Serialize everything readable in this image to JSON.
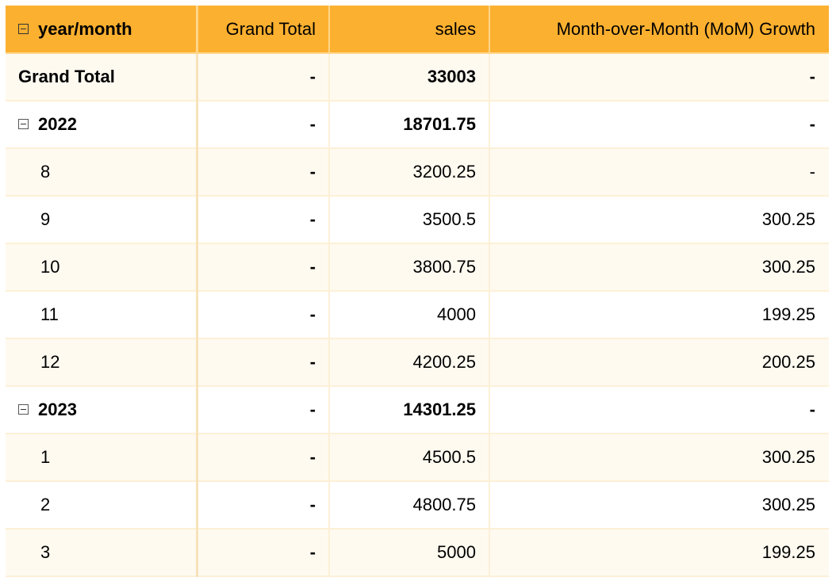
{
  "header": {
    "dimension_label": "year/month",
    "columns": [
      "Grand Total",
      "sales",
      "Month-over-Month (MoM) Growth"
    ]
  },
  "rows": [
    {
      "label": "Grand Total",
      "grand_total": "-",
      "sales": "33003",
      "mom": "-"
    },
    {
      "label": "2022",
      "grand_total": "-",
      "sales": "18701.75",
      "mom": "-"
    },
    {
      "label": "8",
      "grand_total": "-",
      "sales": "3200.25",
      "mom": "-"
    },
    {
      "label": "9",
      "grand_total": "-",
      "sales": "3500.5",
      "mom": "300.25"
    },
    {
      "label": "10",
      "grand_total": "-",
      "sales": "3800.75",
      "mom": "300.25"
    },
    {
      "label": "11",
      "grand_total": "-",
      "sales": "4000",
      "mom": "199.25"
    },
    {
      "label": "12",
      "grand_total": "-",
      "sales": "4200.25",
      "mom": "200.25"
    },
    {
      "label": "2023",
      "grand_total": "-",
      "sales": "14301.25",
      "mom": "-"
    },
    {
      "label": "1",
      "grand_total": "-",
      "sales": "4500.5",
      "mom": "300.25"
    },
    {
      "label": "2",
      "grand_total": "-",
      "sales": "4800.75",
      "mom": "300.25"
    },
    {
      "label": "3",
      "grand_total": "-",
      "sales": "5000",
      "mom": "199.25"
    }
  ],
  "colors": {
    "header_bg": "#fcb02f",
    "row_alt_bg": "#fefaf0",
    "grid_line": "#fdf0d6"
  },
  "icons": {
    "collapse": "minus-square-icon"
  }
}
